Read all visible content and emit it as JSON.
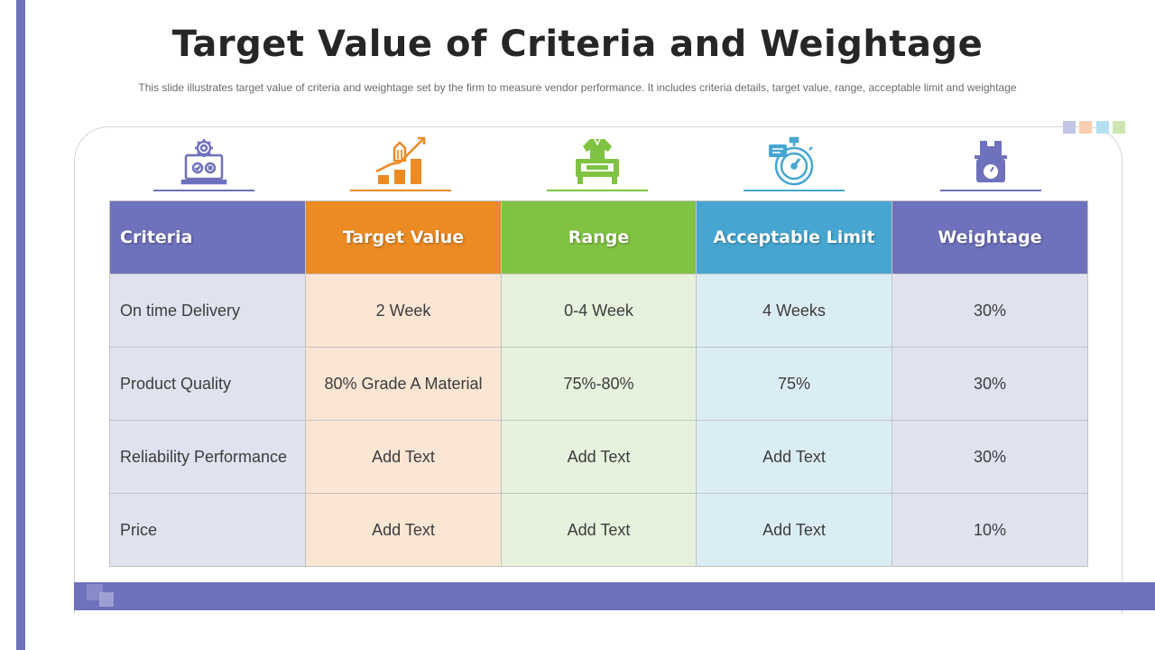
{
  "title": "Target Value of Criteria and Weightage",
  "subtitle": "This slide illustrates target value of criteria and weightage set by the firm to measure vendor performance. It includes criteria details, target value, range, acceptable limit and weightage",
  "colors": {
    "accent": "#6e71bb",
    "orange": "#ec8a23",
    "green": "#80c342",
    "blue": "#46a6d1",
    "purple": "#6e71bb",
    "criteria_cell": "#e1e2f0",
    "target_cell": "#fbe6d4",
    "range_cell": "#e6f2dc",
    "limit_cell": "#dbedf4",
    "weightage_cell": "#e1e2f0",
    "deco_squares": [
      "#c3c5e6",
      "#f7cfb0",
      "#b3dff0",
      "#cce6b3"
    ]
  },
  "icons": [
    {
      "name": "laptop-gear-icon",
      "color": "#6e71bb"
    },
    {
      "name": "growth-chart-icon",
      "color": "#ec8a23"
    },
    {
      "name": "quality-inspection-icon",
      "color": "#80c342"
    },
    {
      "name": "stopwatch-icon",
      "color": "#46a6d1"
    },
    {
      "name": "weighing-scale-icon",
      "color": "#6e71bb"
    }
  ],
  "table": {
    "headers": [
      "Criteria",
      "Target Value",
      "Range",
      "Acceptable Limit",
      "Weightage"
    ],
    "rows": [
      [
        "On time Delivery",
        "2 Week",
        "0-4 Week",
        "4 Weeks",
        "30%"
      ],
      [
        "Product Quality",
        "80% Grade A Material",
        "75%-80%",
        "75%",
        "30%"
      ],
      [
        "Reliability Performance",
        "Add Text",
        "Add Text",
        "Add Text",
        "30%"
      ],
      [
        "Price",
        "Add Text",
        "Add Text",
        "Add Text",
        "10%"
      ]
    ]
  }
}
